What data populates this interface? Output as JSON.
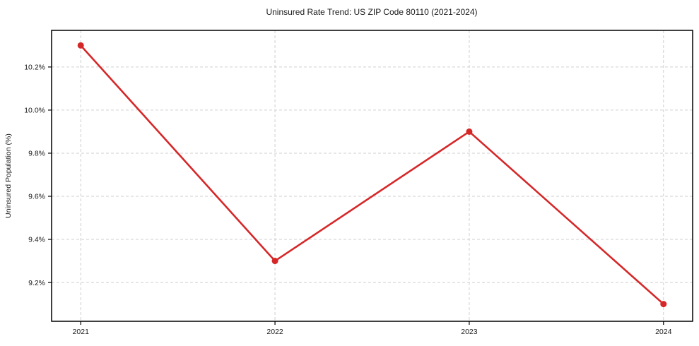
{
  "chart_data": {
    "type": "line",
    "title": "Uninsured Rate Trend: US ZIP Code 80110 (2021-2024)",
    "xlabel": "",
    "ylabel": "Uninsured Population (%)",
    "categories": [
      2021,
      2022,
      2023,
      2024
    ],
    "values": [
      10.3,
      9.3,
      9.9,
      9.1
    ],
    "value_unit": "%",
    "xlim": [
      2020.85,
      2024.15
    ],
    "ylim": [
      9.02,
      10.37
    ],
    "xticks": [
      {
        "value": 2021,
        "label": "2021"
      },
      {
        "value": 2022,
        "label": "2022"
      },
      {
        "value": 2023,
        "label": "2023"
      },
      {
        "value": 2024,
        "label": "2024"
      }
    ],
    "yticks": [
      {
        "value": 9.2,
        "label": "9.2%"
      },
      {
        "value": 9.4,
        "label": "9.4%"
      },
      {
        "value": 9.6,
        "label": "9.6%"
      },
      {
        "value": 9.8,
        "label": "9.8%"
      },
      {
        "value": 10.0,
        "label": "10.0%"
      },
      {
        "value": 10.2,
        "label": "10.2%"
      }
    ],
    "grid": true,
    "grid_style": "dashed",
    "legend": "none",
    "marker": "circle",
    "colors": {
      "line": "#d62728",
      "marker": "#d62728",
      "grid": "#cfcfcf",
      "axis": "#000000",
      "text": "#1a1a1a",
      "background": "#ffffff"
    }
  }
}
